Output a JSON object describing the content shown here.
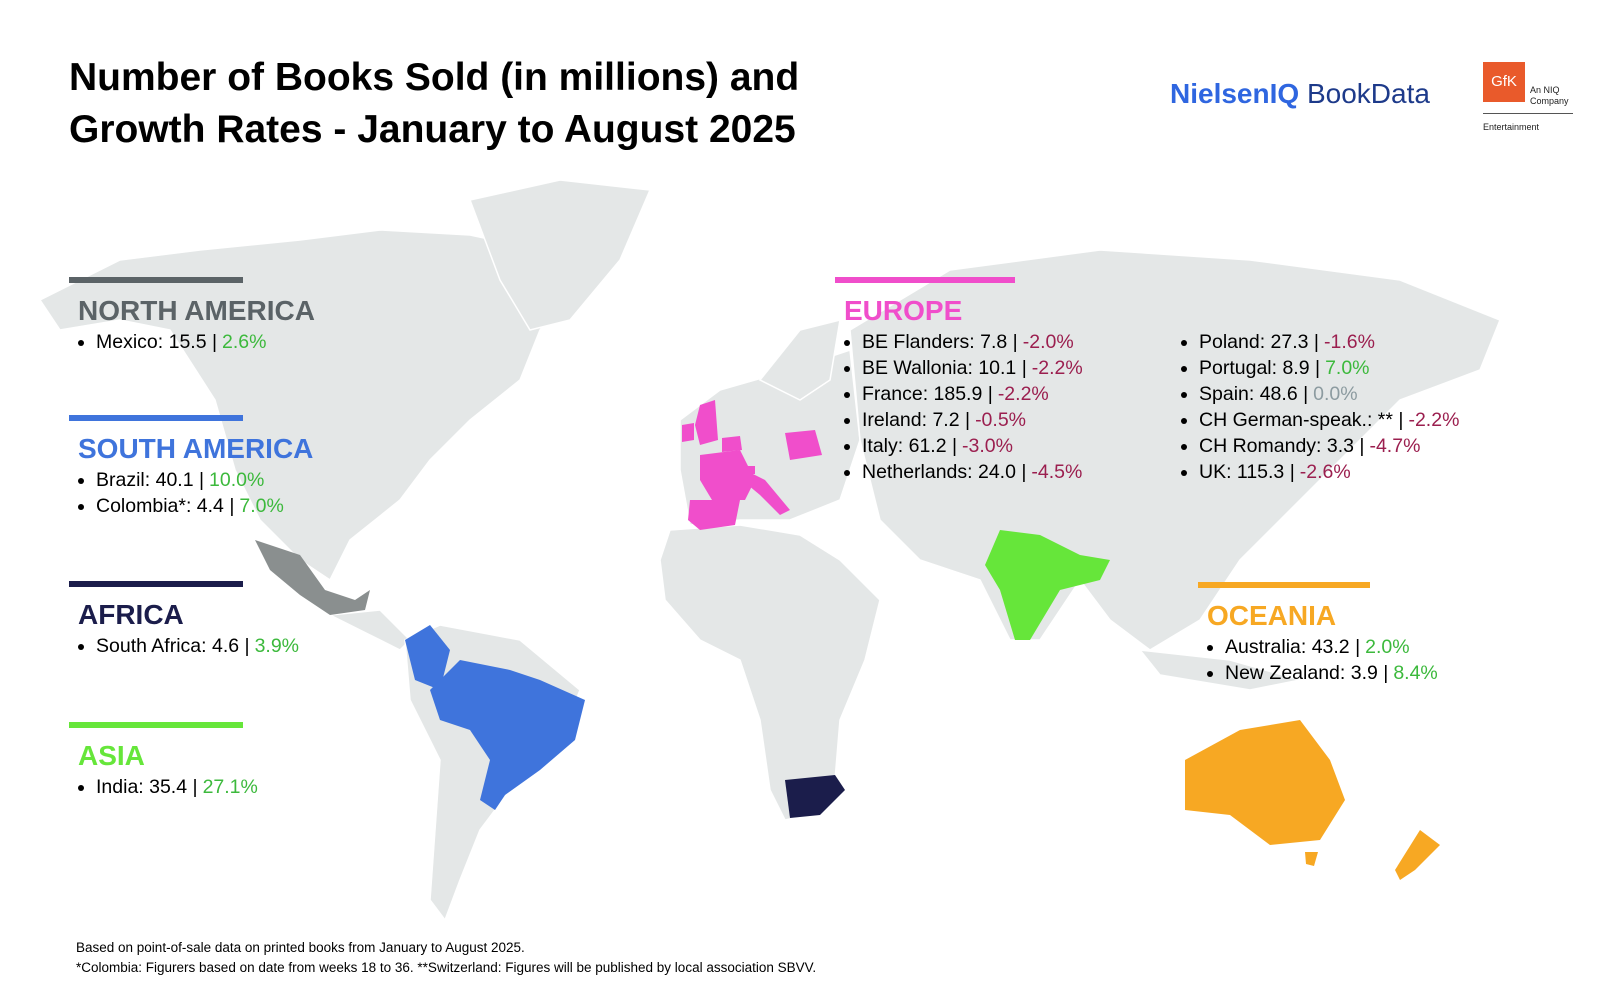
{
  "header": {
    "title": [
      "Number of Books Sold (in millions) and",
      "Growth Rates - January to August 2025"
    ],
    "logo": {
      "brand": "NielsenIQ",
      "product": "BookData",
      "gfk": "GfK",
      "gfk_note": [
        "An NIQ",
        "Company"
      ],
      "gfk_division": "Entertainment"
    }
  },
  "regions": [
    {
      "name": "NORTH AMERICA",
      "color": "#5b6367",
      "items": [
        {
          "text": "Mexico: 15.5 |",
          "growth": "2.6%",
          "color": "#3cb93c"
        }
      ]
    },
    {
      "name": "SOUTH AMERICA",
      "color": "#3f74dc",
      "items": [
        {
          "text": "Brazil: 40.1 |",
          "growth": "10.0%",
          "color": "#3cb93c"
        },
        {
          "text": "Colombia*: 4.4 |",
          "growth": "7.0%",
          "color": "#3cb93c"
        }
      ]
    },
    {
      "name": "AFRICA",
      "color": "#1b1d4b",
      "items": [
        {
          "text": "South Africa: 4.6 |",
          "growth": "3.9%",
          "color": "#3cb93c"
        }
      ]
    },
    {
      "name": "ASIA",
      "color": "#66e63a",
      "items": [
        {
          "text": "India: 35.4 |",
          "growth": "27.1%",
          "color": "#3cb93c"
        }
      ]
    },
    {
      "name": "EUROPE",
      "color": "#f04ecb",
      "items": [
        {
          "text": "BE Flanders: 7.8 |",
          "growth": "-2.0%",
          "color": "#9b1f4f"
        },
        {
          "text": "BE Wallonia: 10.1 |",
          "growth": "-2.2%",
          "color": "#9b1f4f"
        },
        {
          "text": "France: 185.9 |",
          "growth": "-2.2%",
          "color": "#9b1f4f"
        },
        {
          "text": "Ireland: 7.2 |",
          "growth": "-0.5%",
          "color": "#9b1f4f"
        },
        {
          "text": "Italy: 61.2 |",
          "growth": "-3.0%",
          "color": "#9b1f4f"
        },
        {
          "text": "Netherlands: 24.0 |",
          "growth": "-4.5%",
          "color": "#9b1f4f"
        },
        {
          "text": "Poland: 27.3 |",
          "growth": "-1.6%",
          "color": "#9b1f4f"
        },
        {
          "text": "Portugal: 8.9 |",
          "growth": "7.0%",
          "color": "#3cb93c"
        },
        {
          "text": "Spain: 48.6 |",
          "growth": "0.0%",
          "color": "#8c9ba0"
        },
        {
          "text": "CH German-speak.: ** |",
          "growth": "-2.2%",
          "color": "#9b1f4f"
        },
        {
          "text": "CH Romandy: 3.3 |",
          "growth": "-4.7%",
          "color": "#9b1f4f"
        },
        {
          "text": "UK: 115.3 |",
          "growth": "-2.6%",
          "color": "#9b1f4f"
        }
      ]
    },
    {
      "name": "OCEANIA",
      "color": "#f7a823",
      "items": [
        {
          "text": "Australia: 43.2 |",
          "growth": "2.0%",
          "color": "#3cb93c"
        },
        {
          "text": "New Zealand: 3.9 |",
          "growth": "8.4%",
          "color": "#3cb93c"
        }
      ]
    }
  ],
  "footnotes": [
    "Based on point-of-sale data on printed books from January to August 2025.",
    "*Colombia: Figurers based on date from weeks 18 to 36. **Switzerland: Figures will be published by local association SBVV."
  ]
}
